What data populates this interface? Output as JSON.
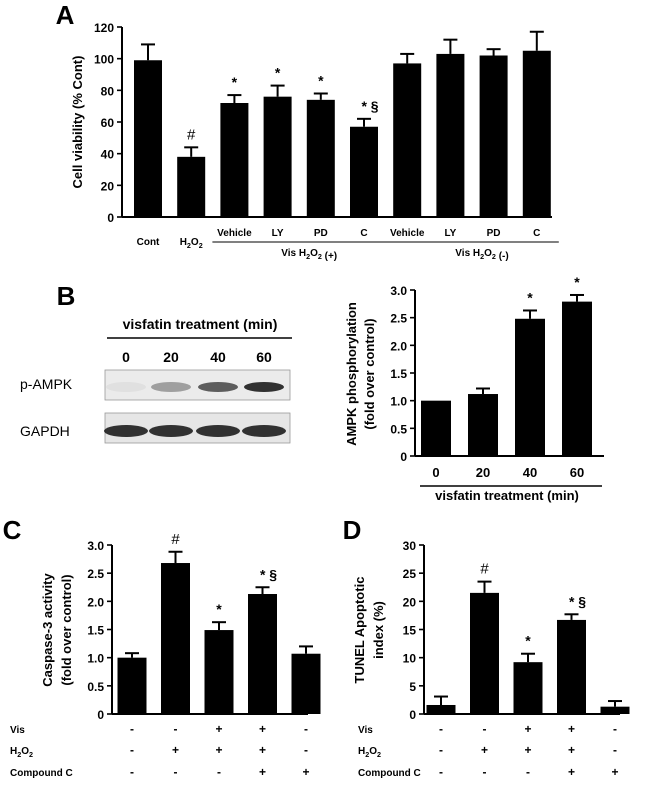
{
  "chart_data": [
    {
      "panel": "A",
      "type": "bar",
      "ylabel": "Cell viability (% Cont)",
      "ylim": [
        0,
        120
      ],
      "yticks": [
        0,
        20,
        40,
        60,
        80,
        100,
        120
      ],
      "categories": [
        "Cont",
        "H2O2",
        "Vehicle",
        "LY",
        "PD",
        "C",
        "Vehicle",
        "LY",
        "PD",
        "C"
      ],
      "values": [
        99,
        38,
        72,
        76,
        74,
        57,
        97,
        103,
        102,
        105
      ],
      "errors": [
        10,
        6,
        5,
        7,
        4,
        5,
        6,
        9,
        4,
        12
      ],
      "annotations": [
        "",
        "#",
        "*",
        "*",
        "*",
        "* §",
        "",
        "",
        "",
        ""
      ],
      "group_labels": [
        "Vis  H2O2 (+)",
        "Vis  H2O2 (-)"
      ]
    },
    {
      "panel": "B",
      "type": "bar",
      "ylabel": "AMPK phosphorylation (fold over control)",
      "xlabel": "visfatin treatment (min)",
      "ylim": [
        0,
        3.0
      ],
      "yticks": [
        "0",
        "0.5",
        "1.0",
        "1.5",
        "2.0",
        "2.5",
        "3.0"
      ],
      "categories": [
        "0",
        "20",
        "40",
        "60"
      ],
      "values": [
        1.0,
        1.12,
        2.48,
        2.79
      ],
      "errors": [
        0,
        0.1,
        0.15,
        0.12
      ],
      "annotations": [
        "",
        "",
        "*",
        "*"
      ],
      "blot": {
        "header": "visfatin treatment (min)",
        "lanes": [
          "0",
          "20",
          "40",
          "60"
        ],
        "rows": [
          "p-AMPK",
          "GAPDH"
        ]
      }
    },
    {
      "panel": "C",
      "type": "bar",
      "ylabel": "Caspase-3 activity (fold over control)",
      "ylim": [
        0,
        3.0
      ],
      "yticks": [
        "0",
        "0.5",
        "1.0",
        "1.5",
        "2.0",
        "2.5",
        "3.0"
      ],
      "values": [
        1.0,
        2.68,
        1.49,
        2.13,
        1.07
      ],
      "errors": [
        0.08,
        0.2,
        0.14,
        0.12,
        0.13
      ],
      "annotations": [
        "",
        "#",
        "*",
        "* §",
        ""
      ],
      "conditions": [
        {
          "label": "Vis",
          "marks": [
            "-",
            "-",
            "+",
            "+",
            "-"
          ]
        },
        {
          "label": "H2O2",
          "marks": [
            "-",
            "+",
            "+",
            "+",
            "-"
          ]
        },
        {
          "label": "Compound C",
          "marks": [
            "-",
            "-",
            "-",
            "+",
            "+"
          ]
        }
      ]
    },
    {
      "panel": "D",
      "type": "bar",
      "ylabel": "TUNEL Apoptotic index (%)",
      "ylim": [
        0,
        30
      ],
      "yticks": [
        "0",
        "5",
        "10",
        "15",
        "20",
        "25",
        "30"
      ],
      "values": [
        1.6,
        21.5,
        9.2,
        16.7,
        1.3
      ],
      "errors": [
        1.5,
        2.0,
        1.5,
        1.0,
        1.0
      ],
      "annotations": [
        "",
        "#",
        "*",
        "* §",
        ""
      ],
      "conditions": [
        {
          "label": "Vis",
          "marks": [
            "-",
            "-",
            "+",
            "+",
            "-"
          ]
        },
        {
          "label": "H2O2",
          "marks": [
            "-",
            "+",
            "+",
            "+",
            "-"
          ]
        },
        {
          "label": "Compound C",
          "marks": [
            "-",
            "-",
            "-",
            "+",
            "+"
          ]
        }
      ]
    }
  ],
  "panel_letters": [
    "A",
    "B",
    "C",
    "D"
  ]
}
